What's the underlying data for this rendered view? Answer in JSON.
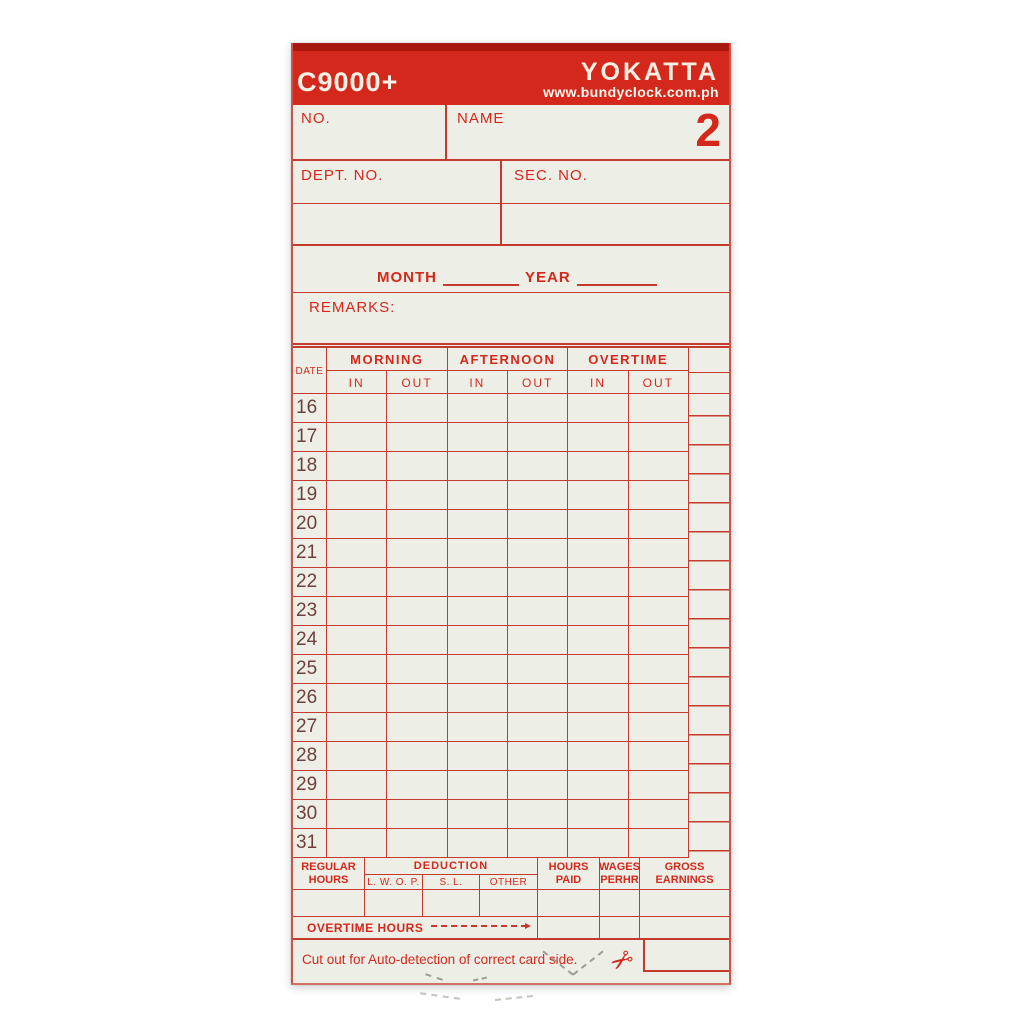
{
  "colors": {
    "red": "#d5281c",
    "line": "#c43a2c",
    "dark_strip": "#a81a10",
    "card_bg": "#edefe7",
    "date_text": "#6e403c",
    "cut_mark": "#9b9e94"
  },
  "header": {
    "model": "C9000+",
    "brand": "YOKATTA",
    "website": "www.bundyclock.com.ph"
  },
  "identity": {
    "no_label": "NO.",
    "name_label": "NAME",
    "card_number": "2",
    "dept_label": "DEPT.  NO.",
    "sec_label": "SEC.  NO."
  },
  "period": {
    "month_label": "MONTH",
    "year_label": "YEAR"
  },
  "remarks_label": "REMARKS:",
  "table": {
    "date_label": "DATE",
    "in_label": "IN",
    "out_label": "OUT",
    "groups": [
      {
        "label": "MORNING"
      },
      {
        "label": "AFTERNOON"
      },
      {
        "label": "OVERTIME"
      }
    ],
    "dates": [
      "16",
      "17",
      "18",
      "19",
      "20",
      "21",
      "22",
      "23",
      "24",
      "25",
      "26",
      "27",
      "28",
      "29",
      "30",
      "31"
    ]
  },
  "summary": {
    "regular_hours_label": "REGULAR HOURS",
    "deduction_label": "DEDUCTION",
    "lwop_label": "L. W. O. P.",
    "sl_label": "S. L.",
    "other_label": "OTHER",
    "hours_paid_label": "HOURS PAID",
    "wages_label": "WAGES PERHR",
    "gross_label": "GROSS EARNINGS",
    "overtime_hours_label": "OVERTIME HOURS"
  },
  "footer": {
    "note": "Cut out for Auto-detection of correct card side.",
    "scissors_icon": "✂"
  }
}
